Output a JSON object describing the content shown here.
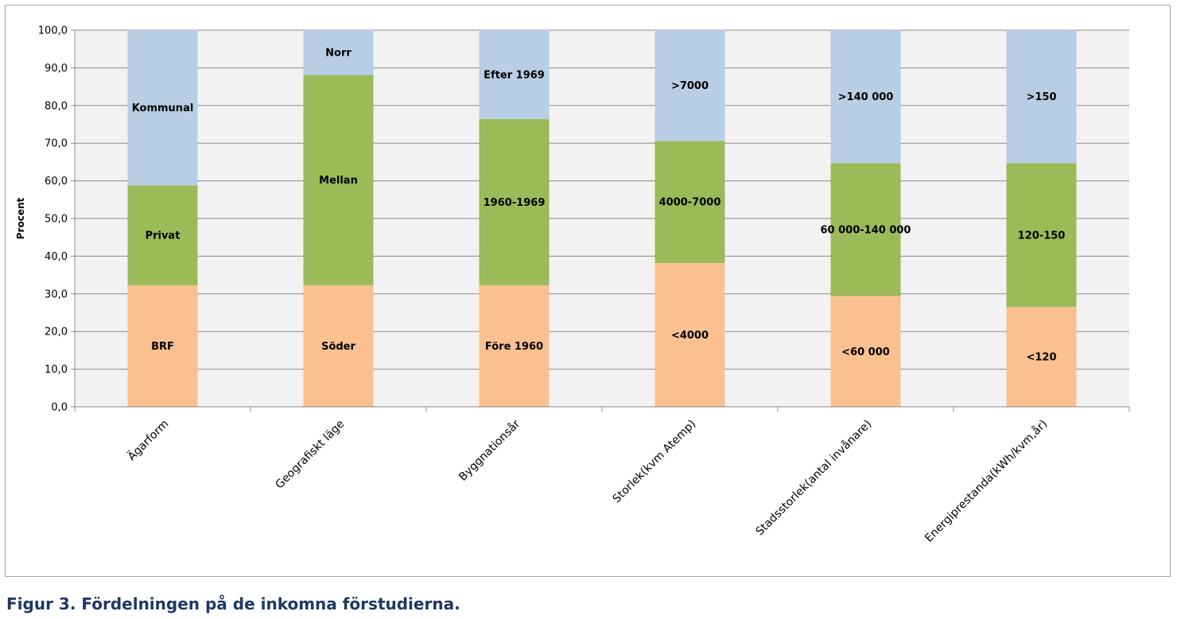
{
  "caption": "Figur 3. Fördelningen på de inkomna förstudierna.",
  "chart_data": {
    "type": "bar",
    "stacked": true,
    "ylabel": "Procent",
    "xlabel": "",
    "ylim": [
      0,
      100
    ],
    "yticks": [
      "0,0",
      "10,0",
      "20,0",
      "30,0",
      "40,0",
      "50,0",
      "60,0",
      "70,0",
      "80,0",
      "90,0",
      "100,0"
    ],
    "grid": true,
    "legend": "none",
    "colors": [
      "#fac090",
      "#9bbb59",
      "#b9cde5"
    ],
    "categories": [
      "Ägarform",
      "Geografiskt läge",
      "Byggnationsår",
      "Storlek(kvm Atemp)",
      "Stadsstorlek(antal invånare)",
      "Energiprestanda(kWh/kvm,år)"
    ],
    "bars": [
      {
        "segments": [
          {
            "label": "BRF",
            "value": 32.3
          },
          {
            "label": "Privat",
            "value": 26.5
          },
          {
            "label": "Kommunal",
            "value": 41.2
          }
        ]
      },
      {
        "segments": [
          {
            "label": "Söder",
            "value": 32.3
          },
          {
            "label": "Mellan",
            "value": 55.8
          },
          {
            "label": "Norr",
            "value": 11.9
          }
        ]
      },
      {
        "segments": [
          {
            "label": "Före 1960",
            "value": 32.3
          },
          {
            "label": "1960-1969",
            "value": 44.1
          },
          {
            "label": "Efter 1969",
            "value": 23.6
          }
        ]
      },
      {
        "segments": [
          {
            "label": "<4000",
            "value": 38.2
          },
          {
            "label": "4000-7000",
            "value": 32.4
          },
          {
            "label": ">7000",
            "value": 29.4
          }
        ]
      },
      {
        "segments": [
          {
            "label": "<60 000",
            "value": 29.4
          },
          {
            "label": "60 000-140 000",
            "value": 35.3
          },
          {
            "label": ">140 000",
            "value": 35.3
          }
        ]
      },
      {
        "segments": [
          {
            "label": "<120",
            "value": 26.5
          },
          {
            "label": "120-150",
            "value": 38.2
          },
          {
            "label": ">150",
            "value": 35.3
          }
        ]
      }
    ]
  }
}
